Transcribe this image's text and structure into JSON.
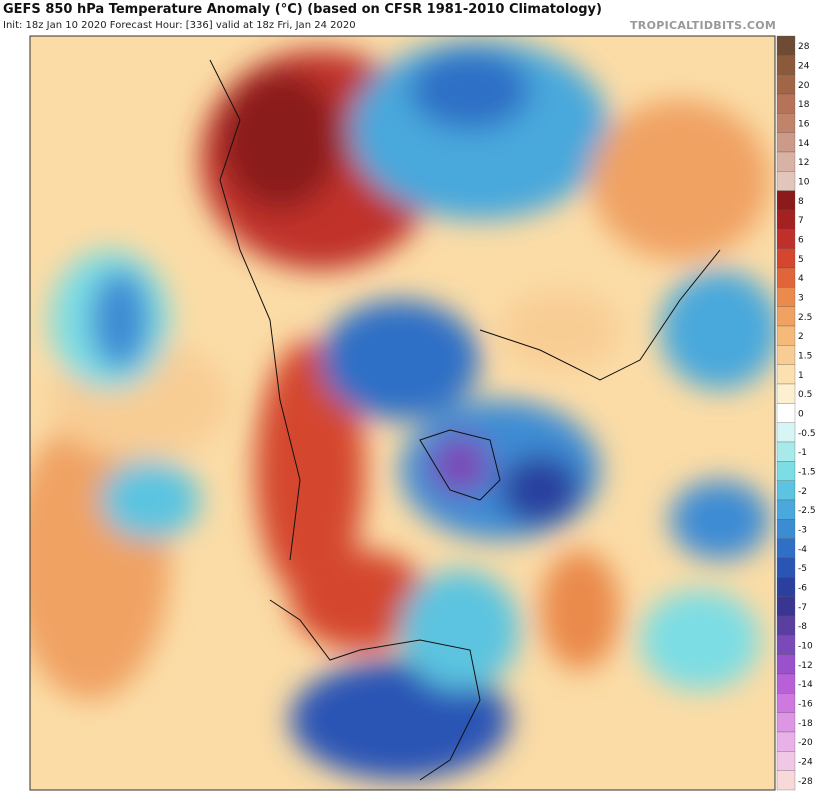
{
  "header": {
    "title": "GEFS 850 hPa Temperature Anomaly (°C) (based on CFSR 1981-2010 Climatology)",
    "subtitle": "Init: 18z Jan 10 2020   Forecast Hour: [336]   valid at 18z Fri, Jan 24 2020",
    "site": "TROPICALTIDBITS.COM"
  },
  "colorbar": {
    "levels": [
      {
        "label": 28,
        "color": "#6e4b34"
      },
      {
        "label": 24,
        "color": "#8a5a3a"
      },
      {
        "label": 20,
        "color": "#a06646"
      },
      {
        "label": 18,
        "color": "#b5735a"
      },
      {
        "label": 16,
        "color": "#c0846b"
      },
      {
        "label": 14,
        "color": "#cc9a88"
      },
      {
        "label": 12,
        "color": "#d8b2a5"
      },
      {
        "label": 10,
        "color": "#e2c6bc"
      },
      {
        "label": 8,
        "color": "#8b1a1a"
      },
      {
        "label": 7,
        "color": "#a52020"
      },
      {
        "label": 6,
        "color": "#c0302a"
      },
      {
        "label": 5,
        "color": "#d4462e"
      },
      {
        "label": 4,
        "color": "#e0663a"
      },
      {
        "label": 3,
        "color": "#ea8a4c"
      },
      {
        "label": 2.5,
        "color": "#f0a263"
      },
      {
        "label": 2,
        "color": "#f5b97a"
      },
      {
        "label": 1.5,
        "color": "#f8cd94"
      },
      {
        "label": 1,
        "color": "#fbe0b0"
      },
      {
        "label": 0.5,
        "color": "#fdf0d0"
      },
      {
        "label": 0,
        "color": "#ffffff"
      },
      {
        "label": -0.5,
        "color": "#d8f5f5"
      },
      {
        "label": -1,
        "color": "#a8eaea"
      },
      {
        "label": -1.5,
        "color": "#7cdde4"
      },
      {
        "label": -2,
        "color": "#5cc4e0"
      },
      {
        "label": -2.5,
        "color": "#4aa8dc"
      },
      {
        "label": -3,
        "color": "#3c8cd4"
      },
      {
        "label": -4,
        "color": "#2f6fc6"
      },
      {
        "label": -5,
        "color": "#2a55b5"
      },
      {
        "label": -6,
        "color": "#2a3f9e"
      },
      {
        "label": -7,
        "color": "#3a3590"
      },
      {
        "label": -8,
        "color": "#5a3ea0"
      },
      {
        "label": -10,
        "color": "#7a4ab8"
      },
      {
        "label": -12,
        "color": "#9a52cc"
      },
      {
        "label": -14,
        "color": "#b860d8"
      },
      {
        "label": -16,
        "color": "#cf78df"
      },
      {
        "label": -18,
        "color": "#dd96e4"
      },
      {
        "label": -20,
        "color": "#e8b2e8"
      },
      {
        "label": -24,
        "color": "#f0c8e6"
      },
      {
        "label": -28,
        "color": "#f8d8d8"
      }
    ]
  }
}
